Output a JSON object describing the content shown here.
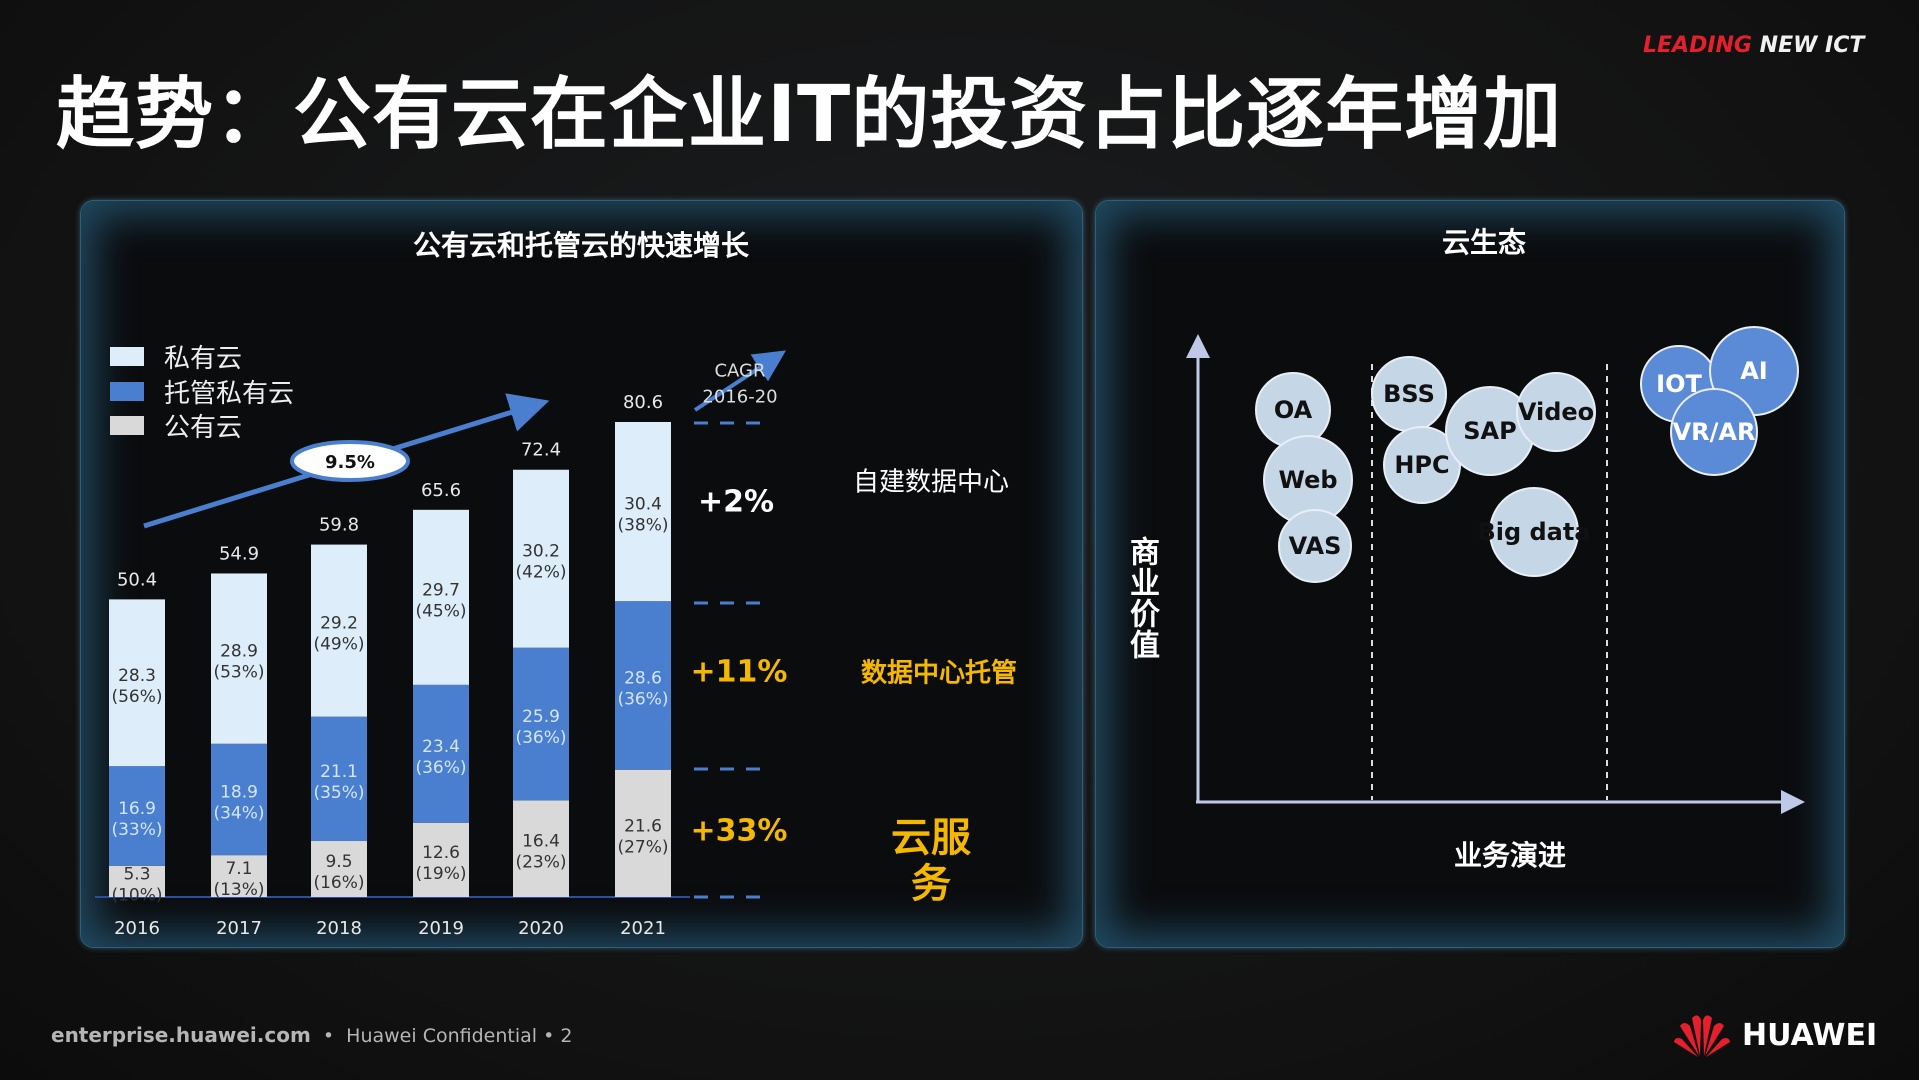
{
  "slide": {
    "title": "趋势：公有云在企业IT的投资占比逐年增加",
    "brand_red": "LEADING",
    "brand_white": "NEW ICT",
    "footer_site": "enterprise.huawei.com",
    "footer_conf": "Huawei Confidential",
    "page_number": "2",
    "logo_text": "HUAWEI"
  },
  "left_panel": {
    "title": "公有云和托管云的快速增长",
    "cagr_label_1": "CAGR",
    "cagr_label_2": "2016-20",
    "overall_growth": "9.5%",
    "segments": [
      {
        "growth": "+2%",
        "label": "自建数据中心",
        "color": "#ffffff"
      },
      {
        "growth": "+11%",
        "label": "数据中心托管",
        "color": "#f5b800"
      },
      {
        "growth": "+33%",
        "label": "云服务",
        "color": "#f5b800"
      }
    ]
  },
  "right_panel": {
    "title": "云生态",
    "y_label": "商业价值",
    "x_label": "业务演进",
    "bubbles": [
      {
        "label": "OA",
        "group": 1
      },
      {
        "label": "Web",
        "group": 1
      },
      {
        "label": "VAS",
        "group": 1
      },
      {
        "label": "BSS",
        "group": 2
      },
      {
        "label": "HPC",
        "group": 2
      },
      {
        "label": "SAP",
        "group": 2
      },
      {
        "label": "Video",
        "group": 2
      },
      {
        "label": "Big data",
        "group": 2
      },
      {
        "label": "IOT",
        "group": 3
      },
      {
        "label": "AI",
        "group": 3
      },
      {
        "label": "VR/AR",
        "group": 3
      }
    ],
    "colors": {
      "light_bubble": "#c5d7e6",
      "dark_bubble": "#5b8bd6"
    }
  },
  "chart_data": {
    "type": "bar",
    "stacked": true,
    "title": "公有云和托管云的快速增长",
    "categories": [
      "2016",
      "2017",
      "2018",
      "2019",
      "2020",
      "2021"
    ],
    "totals": [
      "50.4",
      "54.9",
      "59.8",
      "65.6",
      "72.4",
      "80.6"
    ],
    "legend_position": "top-left",
    "series": [
      {
        "name": "公有云",
        "color": "#d9d9d9",
        "values": [
          5.3,
          7.1,
          9.5,
          12.6,
          16.4,
          21.6
        ],
        "labels": [
          "5.3",
          "7.1",
          "9.5",
          "12.6",
          "16.4",
          "21.6"
        ],
        "pct": [
          "(10%)",
          "(13%)",
          "(16%)",
          "(19%)",
          "(23%)",
          "(27%)"
        ]
      },
      {
        "name": "托管私有云",
        "color": "#4a7fcf",
        "values": [
          16.9,
          18.9,
          21.1,
          23.4,
          25.9,
          28.6
        ],
        "labels": [
          "16.9",
          "18.9",
          "21.1",
          "23.4",
          "25.9",
          "28.6"
        ],
        "pct": [
          "(33%)",
          "(34%)",
          "(35%)",
          "(36%)",
          "(36%)",
          "(36%)"
        ]
      },
      {
        "name": "私有云",
        "color": "#ddeefa",
        "values": [
          28.3,
          28.9,
          29.2,
          29.7,
          30.2,
          30.4
        ],
        "labels": [
          "28.3",
          "28.9",
          "29.2",
          "29.7",
          "30.2",
          "30.4"
        ],
        "pct": [
          "(56%)",
          "(53%)",
          "(49%)",
          "(45%)",
          "(42%)",
          "(38%)"
        ]
      }
    ],
    "ylim": [
      0,
      80.6
    ],
    "grid": false
  }
}
